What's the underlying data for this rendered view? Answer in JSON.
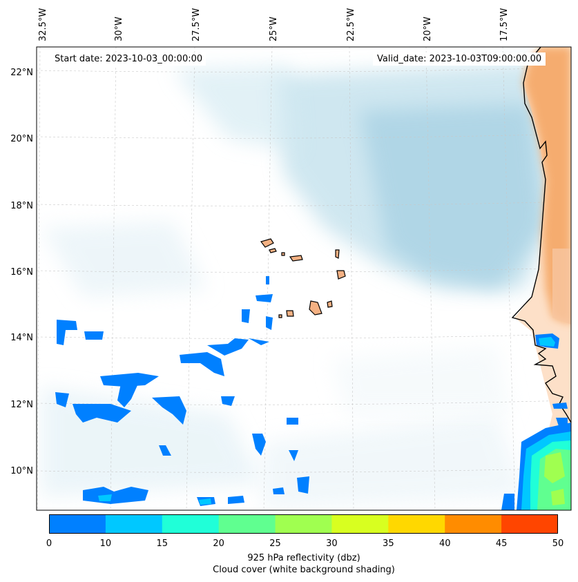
{
  "map": {
    "start_date": "Start date: 2023-10-03_00:00:00",
    "valid_date": "Valid_date: 2023-10-03T09:00:00.00",
    "longitude_labels": [
      "32.5°W",
      "30°W",
      "27.5°W",
      "25°W",
      "22.5°W",
      "20°W",
      "17.5°W"
    ],
    "latitude_labels": [
      "22°N",
      "20°N",
      "18°N",
      "16°N",
      "14°N",
      "12°N",
      "10°N"
    ],
    "land_color": "#f4b183",
    "sahara_color": "#f4a460",
    "cloud_color": "#a9d4e4",
    "coastline_color": "#000000"
  },
  "colorbar": {
    "ticks": [
      "0",
      "10",
      "15",
      "20",
      "25",
      "30",
      "35",
      "40",
      "45",
      "50"
    ],
    "colors": [
      "#0080ff",
      "#00c8ff",
      "#20ffd8",
      "#60ff90",
      "#a0ff50",
      "#d8ff20",
      "#ffd800",
      "#ff8c00",
      "#ff4500"
    ],
    "label_line1": "925 hPa reflectivity (dbz)",
    "label_line2": "Cloud cover (white background shading)"
  }
}
